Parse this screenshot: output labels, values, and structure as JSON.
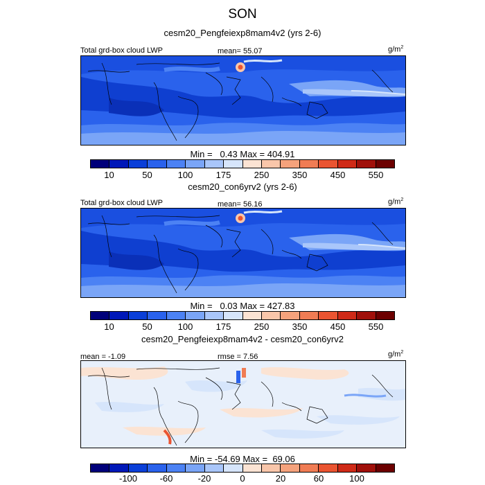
{
  "title": "SON",
  "panels": [
    {
      "subtitle": "cesm20_Pengfeiexp8mam4v2 (yrs 2-6)",
      "left_label": "Total grd-box cloud LWP",
      "center_label": "mean=  55.07",
      "units": "g/m",
      "units_sup": "2",
      "minmax": "Min =   0.43 Max = 404.91",
      "colorbar_colors": [
        "#00007a",
        "#0018b8",
        "#0a3fd8",
        "#2a62ec",
        "#4c82f4",
        "#7aa5f7",
        "#a9c6fa",
        "#d6e5fb",
        "#fbe3d3",
        "#f9c6aa",
        "#f5a27c",
        "#f07c54",
        "#ea5431",
        "#cf2a17",
        "#a0100a",
        "#6c0000"
      ],
      "tick_labels": [
        "10",
        "50",
        "100",
        "175",
        "250",
        "350",
        "450",
        "550"
      ]
    },
    {
      "subtitle": "cesm20_con6yrv2 (yrs 2-6)",
      "left_label": "Total grd-box cloud LWP",
      "center_label": "mean=  56.16",
      "units": "g/m",
      "units_sup": "2",
      "minmax": "Min =   0.03 Max = 427.83",
      "colorbar_colors": [
        "#00007a",
        "#0018b8",
        "#0a3fd8",
        "#2a62ec",
        "#4c82f4",
        "#7aa5f7",
        "#a9c6fa",
        "#d6e5fb",
        "#fbe3d3",
        "#f9c6aa",
        "#f5a27c",
        "#f07c54",
        "#ea5431",
        "#cf2a17",
        "#a0100a",
        "#6c0000"
      ],
      "tick_labels": [
        "10",
        "50",
        "100",
        "175",
        "250",
        "350",
        "450",
        "550"
      ]
    },
    {
      "subtitle": "cesm20_Pengfeiexp8mam4v2 - cesm20_con6yrv2",
      "left_label": "mean =  -1.09",
      "center_label": "rmse =   7.56",
      "units": "g/m",
      "units_sup": "2",
      "minmax": "Min = -54.69 Max =  69.06",
      "colorbar_colors": [
        "#00007a",
        "#0018b8",
        "#0a3fd8",
        "#2a62ec",
        "#4c82f4",
        "#7aa5f7",
        "#a9c6fa",
        "#d6e5fb",
        "#fbe3d3",
        "#f9c6aa",
        "#f5a27c",
        "#f07c54",
        "#ea5431",
        "#cf2a17",
        "#a0100a",
        "#6c0000"
      ],
      "tick_labels": [
        "-100",
        "-60",
        "-20",
        "0",
        "20",
        "60",
        "100"
      ]
    }
  ]
}
